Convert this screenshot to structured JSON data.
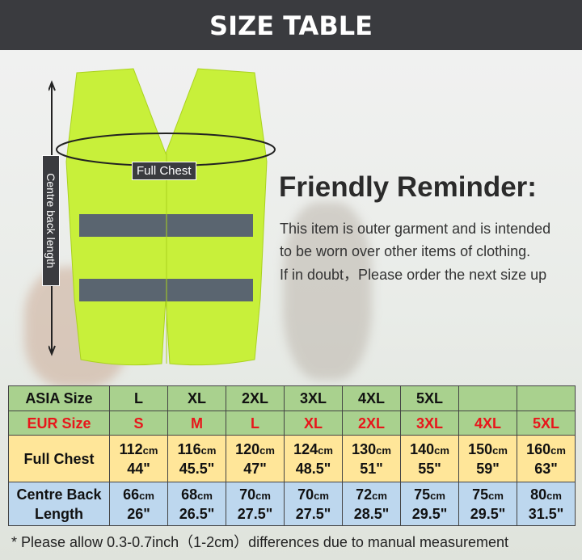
{
  "header": {
    "title": "SIZE TABLE"
  },
  "labels": {
    "full_chest": "Full Chest",
    "centre_back_length": "Centre back length"
  },
  "reminder": {
    "title": "Friendly Reminder:",
    "lines": [
      "This item is outer garment and is intended",
      "to be worn over other items of clothing.",
      "If in doubt，Please order the next size up"
    ]
  },
  "colors": {
    "vest": "#c8f03a",
    "header": "#3a3b3f",
    "row_green": "#a9d18e",
    "row_yellow": "#ffe699",
    "row_blue": "#bdd7ee",
    "eur_red": "#e8161b"
  },
  "table": {
    "asia": {
      "label": "ASIA Size",
      "values": [
        "L",
        "XL",
        "2XL",
        "3XL",
        "4XL",
        "5XL",
        "",
        ""
      ]
    },
    "eur": {
      "label": "EUR Size",
      "values": [
        "S",
        "M",
        "L",
        "XL",
        "2XL",
        "3XL",
        "4XL",
        "5XL"
      ]
    },
    "chest": {
      "label": "Full Chest",
      "cm": [
        "112",
        "116",
        "120",
        "124",
        "130",
        "140",
        "150",
        "160"
      ],
      "inch": [
        "44\"",
        "45.5\"",
        "47\"",
        "48.5\"",
        "51\"",
        "55\"",
        "59\"",
        "63\""
      ]
    },
    "back": {
      "label": "Centre Back Length",
      "cm": [
        "66",
        "68",
        "70",
        "70",
        "72",
        "75",
        "75",
        "80"
      ],
      "inch": [
        "26\"",
        "26.5\"",
        "27.5\"",
        "27.5\"",
        "28.5\"",
        "29.5\"",
        "29.5\"",
        "31.5\""
      ]
    },
    "unit_cm": "cm"
  },
  "note": "* Please allow 0.3-0.7inch（1-2cm）differences due to manual measurement"
}
